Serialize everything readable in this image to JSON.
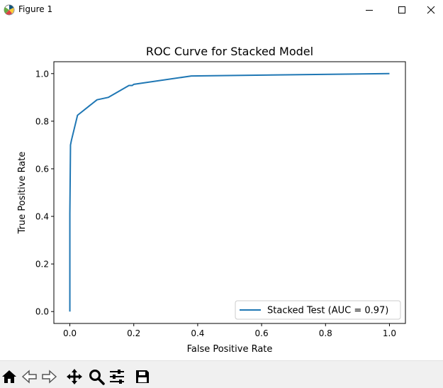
{
  "window": {
    "title": "Figure 1",
    "icon": "matplotlib-icon",
    "controls": [
      "minimize-icon",
      "maximize-icon",
      "close-icon"
    ]
  },
  "chart_data": {
    "type": "line",
    "title": "ROC Curve for Stacked Model",
    "xlabel": "False Positive Rate",
    "ylabel": "True Positive Rate",
    "xlim": [
      -0.05,
      1.05
    ],
    "ylim": [
      -0.05,
      1.05
    ],
    "xticks": [
      0.0,
      0.2,
      0.4,
      0.6,
      0.8,
      1.0
    ],
    "yticks": [
      0.0,
      0.2,
      0.4,
      0.6,
      0.8,
      1.0
    ],
    "xtick_labels": [
      "0.0",
      "0.2",
      "0.4",
      "0.6",
      "0.8",
      "1.0"
    ],
    "ytick_labels": [
      "0.0",
      "0.2",
      "0.4",
      "0.6",
      "0.8",
      "1.0"
    ],
    "grid": false,
    "legend_position": "lower right",
    "series": [
      {
        "name": "Stacked Test (AUC = 0.97)",
        "color": "#1f77b4",
        "x": [
          0.0,
          0.0,
          0.002,
          0.005,
          0.024,
          0.085,
          0.12,
          0.185,
          0.195,
          0.2,
          0.38,
          1.0
        ],
        "y": [
          0.0,
          0.41,
          0.7,
          0.72,
          0.825,
          0.89,
          0.9,
          0.95,
          0.95,
          0.955,
          0.99,
          1.0
        ]
      }
    ]
  },
  "toolbar": {
    "buttons": [
      {
        "name": "home-button",
        "icon": "home-icon"
      },
      {
        "name": "back-button",
        "icon": "back-arrow-icon"
      },
      {
        "name": "forward-button",
        "icon": "forward-arrow-icon"
      },
      {
        "name": "pan-button",
        "icon": "move-icon"
      },
      {
        "name": "zoom-button",
        "icon": "zoom-icon"
      },
      {
        "name": "subplots-button",
        "icon": "sliders-icon"
      },
      {
        "name": "save-button",
        "icon": "save-icon"
      }
    ]
  }
}
